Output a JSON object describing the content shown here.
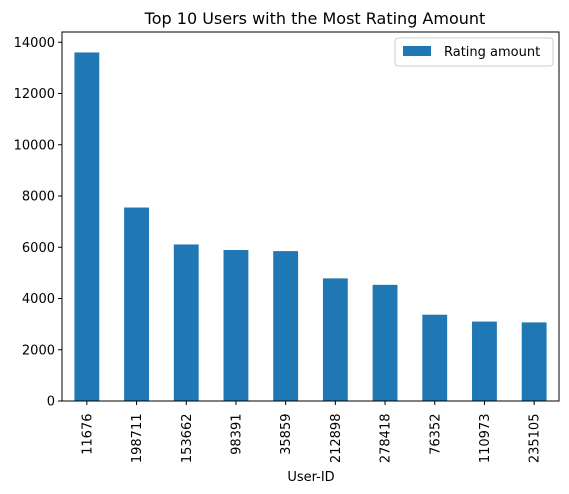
{
  "chart_data": {
    "type": "bar",
    "title": "Top 10 Users with the Most Rating Amount",
    "xlabel": "User-ID",
    "ylabel": "",
    "categories": [
      "11676",
      "198711",
      "153662",
      "98391",
      "35859",
      "212898",
      "278418",
      "76352",
      "110973",
      "235105"
    ],
    "series": [
      {
        "name": "Rating amount",
        "values": [
          13602,
          7550,
          6109,
          5891,
          5850,
          4785,
          4533,
          3367,
          3100,
          3067
        ]
      }
    ],
    "ylim": [
      0,
      14400
    ],
    "yticks": [
      0,
      2000,
      4000,
      6000,
      8000,
      10000,
      12000,
      14000
    ],
    "grid": false,
    "legend_position": "top-right",
    "bar_color": "#1f77b4"
  }
}
